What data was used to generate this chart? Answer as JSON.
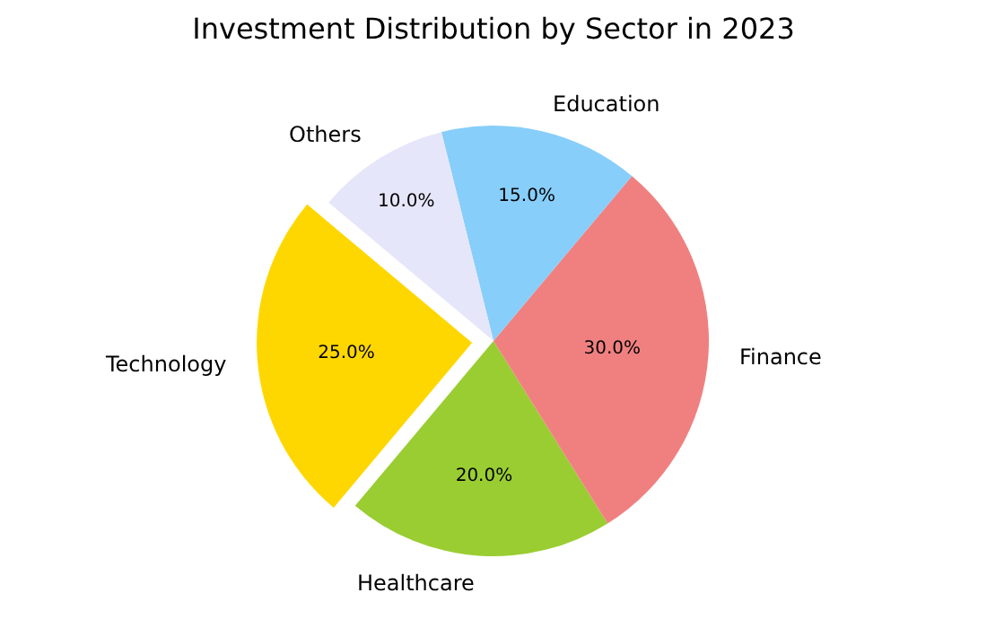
{
  "chart_data": {
    "type": "pie",
    "title": "Investment Distribution by Sector in 2023",
    "categories": [
      "Technology",
      "Healthcare",
      "Finance",
      "Education",
      "Others"
    ],
    "values": [
      25,
      20,
      30,
      15,
      10
    ],
    "colors": [
      "#ffd700",
      "#9acd32",
      "#f08080",
      "#87cefa",
      "#e6e6fa"
    ],
    "value_labels": [
      "25.0%",
      "20.0%",
      "30.0%",
      "15.0%",
      "10.0%"
    ],
    "legend": false
  }
}
